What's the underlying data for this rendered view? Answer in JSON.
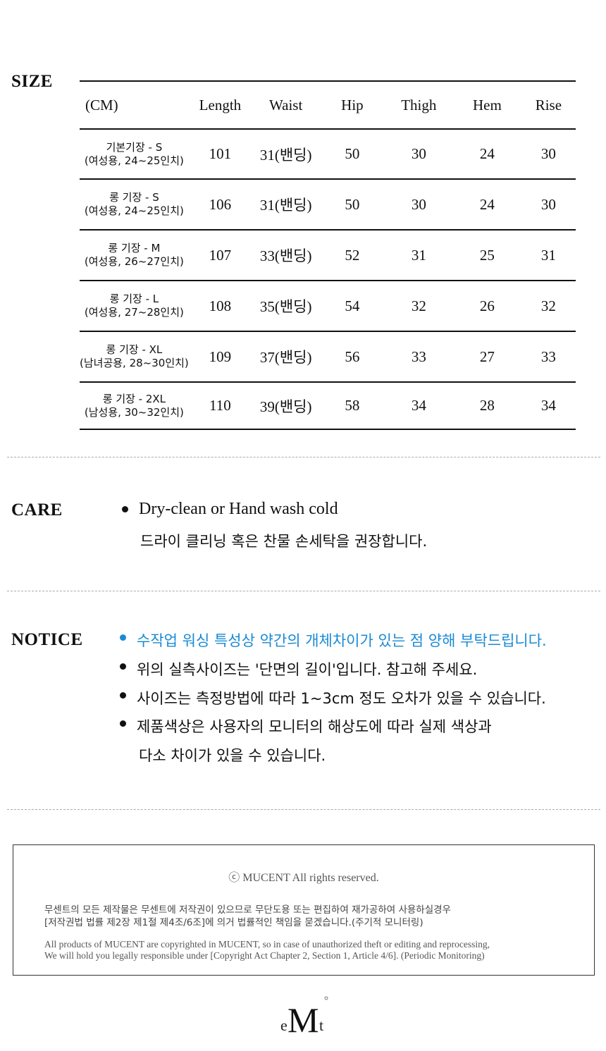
{
  "size": {
    "label": "SIZE",
    "headers": [
      "(CM)",
      "Length",
      "Waist",
      "Hip",
      "Thigh",
      "Hem",
      "Rise"
    ],
    "rows": [
      {
        "name": "기본기장 - S",
        "sub": "(여성용, 24~25인치)",
        "values": [
          "101",
          "31(밴딩)",
          "50",
          "30",
          "24",
          "30"
        ]
      },
      {
        "name": "롱 기장 - S",
        "sub": "(여성용, 24~25인치)",
        "values": [
          "106",
          "31(밴딩)",
          "50",
          "30",
          "24",
          "30"
        ]
      },
      {
        "name": "롱 기장 - M",
        "sub": "(여성용, 26~27인치)",
        "values": [
          "107",
          "33(밴딩)",
          "52",
          "31",
          "25",
          "31"
        ]
      },
      {
        "name": "롱 기장 - L",
        "sub": "(여성용, 27~28인치)",
        "values": [
          "108",
          "35(밴딩)",
          "54",
          "32",
          "26",
          "32"
        ]
      },
      {
        "name": "롱 기장 - XL",
        "sub": "(남녀공용, 28~30인치)",
        "values": [
          "109",
          "37(밴딩)",
          "56",
          "33",
          "27",
          "33"
        ]
      },
      {
        "name": "롱 기장 - 2XL",
        "sub": "(남성용, 30~32인치)",
        "values": [
          "110",
          "39(밴딩)",
          "58",
          "34",
          "28",
          "34"
        ]
      }
    ]
  },
  "care": {
    "label": "CARE",
    "line1": "Dry-clean or Hand wash cold",
    "line2": "드라이 클리닝 혹은 찬물 손세탁을 권장합니다."
  },
  "notice": {
    "label": "NOTICE",
    "accent": "#1a8ad4",
    "items": [
      "수작업 워싱 특성상 약간의 개체차이가 있는 점 양해 부탁드립니다.",
      "위의 실측사이즈는 '단면의 길이'입니다. 참고해 주세요.",
      "사이즈는 측정방법에 따라 1~3cm 정도 오차가 있을 수 있습니다.",
      "제품색상은 사용자의 모니터의 해상도에 따라 실제 색상과"
    ],
    "continuation": "다소 차이가 있을 수 있습니다."
  },
  "footer": {
    "copyright": "ⓒ MUCENT All rights reserved.",
    "ko1": "무센트의 모든 제작물은 무센트에 저작권이 있으므로 무단도용 또는 편집하여 재가공하여 사용하실경우",
    "ko2": "[저작권법 법률 제2장 제1절 제4조/6조]에 의거 법률적인 책임을 묻겠습니다.(주기적 모니터링)",
    "en1": "All products of MUCENT are copyrighted in MUCENT, so in case of unauthorized theft or editing and reprocessing,",
    "en2": "We will hold you legally responsible under [Copyright Act Chapter 2, Section 1, Article 4/6]. (Periodic Monitoring)"
  },
  "logo": {
    "text": "eMt"
  }
}
